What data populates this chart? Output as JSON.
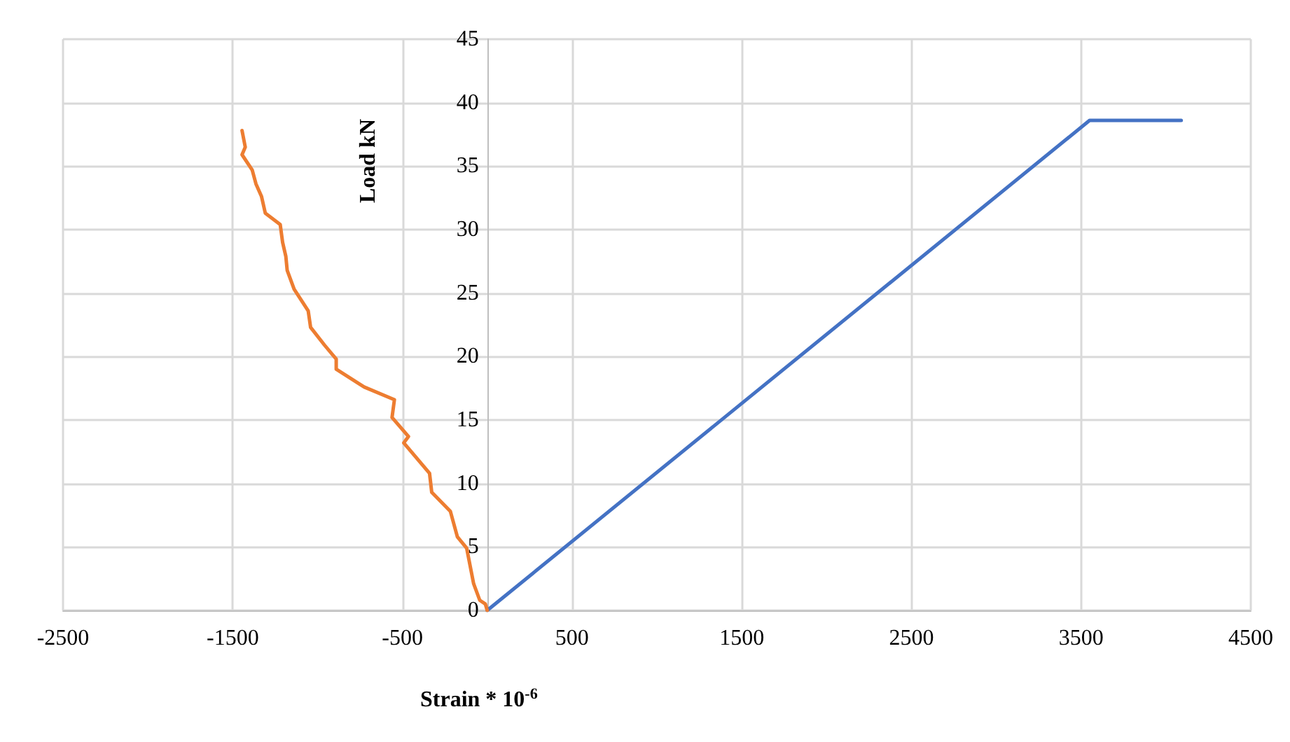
{
  "chart_data": {
    "type": "line",
    "xlabel": "Strain * 10$^{-6}$",
    "ylabel": "Load kN",
    "series": [
      {
        "color": "#4472c4",
        "x": [
          0,
          3550,
          4090
        ],
        "values": [
          0,
          38.6,
          38.6
        ]
      },
      {
        "color": "#ed7d31",
        "x": [
          -1445,
          -1426,
          -1445,
          -1385,
          -1363,
          -1330,
          -1308,
          -1220,
          -1206,
          -1187,
          -1179,
          -1138,
          -1055,
          -1041,
          -959,
          -890,
          -890,
          -725,
          -547,
          -561,
          -464,
          -492,
          -340,
          -327,
          -217,
          -176,
          -121,
          -80,
          -44,
          -11,
          0
        ],
        "values": [
          37.8,
          36.5,
          35.9,
          34.7,
          33.6,
          32.6,
          31.3,
          30.4,
          29.0,
          27.9,
          26.8,
          25.3,
          23.6,
          22.3,
          20.9,
          19.8,
          19.0,
          17.6,
          16.6,
          15.2,
          13.7,
          13.2,
          10.8,
          9.3,
          7.8,
          5.8,
          4.9,
          2.1,
          0.8,
          0.5,
          0
        ]
      }
    ],
    "xlim": [
      -2500,
      4500
    ],
    "xticks": [
      -2500,
      -1500,
      -500,
      500,
      1500,
      2500,
      3500,
      4500
    ],
    "ylim": [
      0,
      45
    ],
    "yticks": [
      0,
      5,
      10,
      15,
      20,
      25,
      30,
      35,
      40,
      45
    ],
    "grid": true,
    "marker": "none",
    "line_style": "solid"
  }
}
